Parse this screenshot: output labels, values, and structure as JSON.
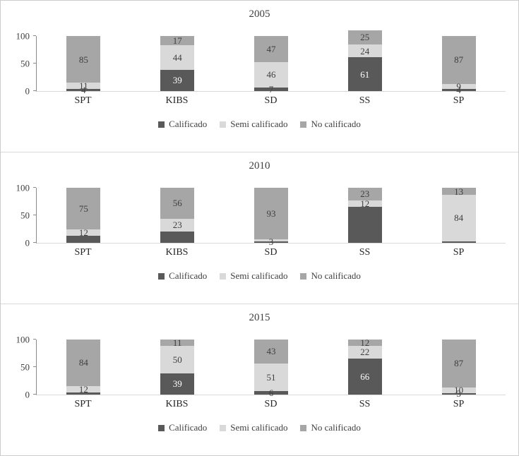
{
  "charts": [
    {
      "title": "2005",
      "type": "bar",
      "stacked": true,
      "categories": [
        "SPT",
        "KIBS",
        "SD",
        "SS",
        "SP"
      ],
      "ylim": [
        0,
        100
      ],
      "y_ticks": [
        0,
        50,
        100
      ],
      "series": [
        {
          "name": "Calificado",
          "color": "#595959",
          "values": [
            4,
            39,
            7,
            61,
            4
          ],
          "labels": [
            "4",
            "39",
            "7",
            "61",
            "4"
          ]
        },
        {
          "name": "Semi calificado",
          "color": "#d9d9d9",
          "values": [
            11,
            44,
            46,
            24,
            9
          ],
          "labels": [
            "11",
            "44",
            "46",
            "24",
            "9"
          ]
        },
        {
          "name": "No calificado",
          "color": "#a6a6a6",
          "values": [
            85,
            17,
            47,
            25,
            87
          ],
          "labels": [
            "85",
            "17",
            "47",
            "25",
            "87"
          ]
        }
      ],
      "legend": [
        "Calificado",
        "Semi calificado",
        "No calificado"
      ]
    },
    {
      "title": "2010",
      "type": "bar",
      "stacked": true,
      "categories": [
        "SPT",
        "KIBS",
        "SD",
        "SS",
        "SP"
      ],
      "ylim": [
        0,
        100
      ],
      "y_ticks": [
        0,
        50,
        100
      ],
      "series": [
        {
          "name": "Calificado",
          "color": "#595959",
          "values": [
            13,
            21,
            3,
            65,
            3
          ],
          "labels": [
            "",
            "",
            "3",
            "",
            ""
          ]
        },
        {
          "name": "Semi calificado",
          "color": "#d9d9d9",
          "values": [
            12,
            23,
            4,
            12,
            84
          ],
          "labels": [
            "12",
            "23",
            "",
            "12",
            "84"
          ]
        },
        {
          "name": "No calificado",
          "color": "#a6a6a6",
          "values": [
            75,
            56,
            93,
            23,
            13
          ],
          "labels": [
            "75",
            "56",
            "93",
            "23",
            "13"
          ]
        }
      ],
      "legend": [
        "Calificado",
        "Semi calificado",
        "No calificado"
      ]
    },
    {
      "title": "2015",
      "type": "bar",
      "stacked": true,
      "categories": [
        "SPT",
        "KIBS",
        "SD",
        "SS",
        "SP"
      ],
      "ylim": [
        0,
        100
      ],
      "y_ticks": [
        0,
        50,
        100
      ],
      "series": [
        {
          "name": "Calificado",
          "color": "#595959",
          "values": [
            4,
            39,
            6,
            66,
            3
          ],
          "labels": [
            "",
            "39",
            "6",
            "66",
            "3"
          ]
        },
        {
          "name": "Semi calificado",
          "color": "#d9d9d9",
          "values": [
            12,
            50,
            51,
            22,
            10
          ],
          "labels": [
            "12",
            "50",
            "51",
            "22",
            "10"
          ]
        },
        {
          "name": "No calificado",
          "color": "#a6a6a6",
          "values": [
            84,
            11,
            43,
            12,
            87
          ],
          "labels": [
            "84",
            "11",
            "43",
            "12",
            "87"
          ]
        }
      ],
      "legend": [
        "Calificado",
        "Semi calificado",
        "No calificado"
      ]
    }
  ],
  "chart_data": [
    {
      "type": "bar",
      "title": "2005",
      "categories": [
        "SPT",
        "KIBS",
        "SD",
        "SS",
        "SP"
      ],
      "series": [
        {
          "name": "Calificado",
          "values": [
            4,
            39,
            7,
            61,
            4
          ]
        },
        {
          "name": "Semi calificado",
          "values": [
            11,
            44,
            46,
            24,
            9
          ]
        },
        {
          "name": "No calificado",
          "values": [
            85,
            17,
            47,
            25,
            87
          ]
        }
      ],
      "xlabel": "",
      "ylabel": "",
      "ylim": [
        0,
        100
      ],
      "legend_position": "bottom"
    },
    {
      "type": "bar",
      "title": "2010",
      "categories": [
        "SPT",
        "KIBS",
        "SD",
        "SS",
        "SP"
      ],
      "series": [
        {
          "name": "Calificado",
          "values": [
            13,
            21,
            3,
            65,
            3
          ]
        },
        {
          "name": "Semi calificado",
          "values": [
            12,
            23,
            4,
            12,
            84
          ]
        },
        {
          "name": "No calificado",
          "values": [
            75,
            56,
            93,
            23,
            13
          ]
        }
      ],
      "xlabel": "",
      "ylabel": "",
      "ylim": [
        0,
        100
      ],
      "legend_position": "bottom"
    },
    {
      "type": "bar",
      "title": "2015",
      "categories": [
        "SPT",
        "KIBS",
        "SD",
        "SS",
        "SP"
      ],
      "series": [
        {
          "name": "Calificado",
          "values": [
            4,
            39,
            6,
            66,
            3
          ]
        },
        {
          "name": "Semi calificado",
          "values": [
            12,
            50,
            51,
            22,
            10
          ]
        },
        {
          "name": "No calificado",
          "values": [
            84,
            11,
            43,
            12,
            87
          ]
        }
      ],
      "xlabel": "",
      "ylabel": "",
      "ylim": [
        0,
        100
      ],
      "legend_position": "bottom"
    }
  ]
}
